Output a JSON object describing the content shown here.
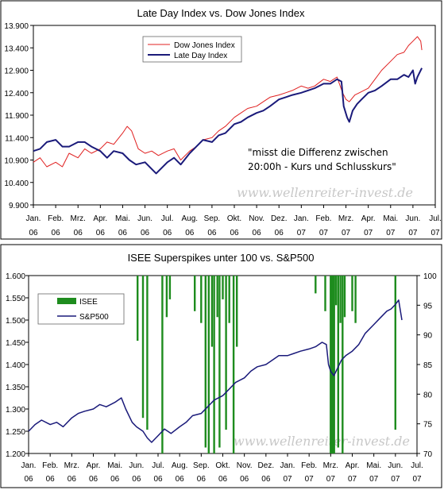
{
  "chart_data": [
    {
      "type": "line",
      "title": "Late Day Index vs. Dow Jones Index",
      "y_ticks": [
        "13.900",
        "13.400",
        "12.900",
        "12.400",
        "11.900",
        "11.400",
        "10.900",
        "10.400",
        "9.900"
      ],
      "ylim": [
        9900,
        13900
      ],
      "x_ticks": [
        {
          "m": "Jan.",
          "y": "06"
        },
        {
          "m": "Feb.",
          "y": "06"
        },
        {
          "m": "Mrz.",
          "y": "06"
        },
        {
          "m": "Apr.",
          "y": "06"
        },
        {
          "m": "Mai.",
          "y": "06"
        },
        {
          "m": "Jun.",
          "y": "06"
        },
        {
          "m": "Jul.",
          "y": "06"
        },
        {
          "m": "Aug.",
          "y": "06"
        },
        {
          "m": "Sep.",
          "y": "06"
        },
        {
          "m": "Okt.",
          "y": "06"
        },
        {
          "m": "Nov.",
          "y": "06"
        },
        {
          "m": "Dez.",
          "y": "06"
        },
        {
          "m": "Jan.",
          "y": "07"
        },
        {
          "m": "Feb.",
          "y": "07"
        },
        {
          "m": "Mrz.",
          "y": "07"
        },
        {
          "m": "Apr.",
          "y": "07"
        },
        {
          "m": "Mai.",
          "y": "07"
        },
        {
          "m": "Jun.",
          "y": "07"
        },
        {
          "m": "Jul.",
          "y": "07"
        }
      ],
      "legend": "top-left",
      "grid": false,
      "annotation": [
        "\"misst die Differenz zwischen",
        "20:00h - Kurs und Schlusskurs\""
      ],
      "watermark": "www.wellenreiter-invest.de",
      "series": [
        {
          "name": "Dow Jones Index",
          "color": "#e02020",
          "points": [
            [
              0,
              10850
            ],
            [
              0.3,
              10950
            ],
            [
              0.6,
              10750
            ],
            [
              1,
              10850
            ],
            [
              1.3,
              10750
            ],
            [
              1.6,
              11050
            ],
            [
              2,
              10950
            ],
            [
              2.3,
              11150
            ],
            [
              2.6,
              11050
            ],
            [
              3,
              11150
            ],
            [
              3.3,
              11300
            ],
            [
              3.6,
              11250
            ],
            [
              4,
              11500
            ],
            [
              4.2,
              11650
            ],
            [
              4.4,
              11550
            ],
            [
              4.7,
              11150
            ],
            [
              5,
              11050
            ],
            [
              5.3,
              11100
            ],
            [
              5.6,
              11000
            ],
            [
              6,
              11100
            ],
            [
              6.3,
              11150
            ],
            [
              6.6,
              10900
            ],
            [
              7,
              11100
            ],
            [
              7.3,
              11200
            ],
            [
              7.6,
              11350
            ],
            [
              8,
              11400
            ],
            [
              8.3,
              11550
            ],
            [
              8.6,
              11650
            ],
            [
              9,
              11850
            ],
            [
              9.3,
              11950
            ],
            [
              9.6,
              12050
            ],
            [
              10,
              12100
            ],
            [
              10.3,
              12200
            ],
            [
              10.6,
              12300
            ],
            [
              11,
              12350
            ],
            [
              11.3,
              12400
            ],
            [
              11.6,
              12450
            ],
            [
              12,
              12550
            ],
            [
              12.3,
              12500
            ],
            [
              12.6,
              12550
            ],
            [
              13,
              12700
            ],
            [
              13.3,
              12650
            ],
            [
              13.6,
              12750
            ],
            [
              13.85,
              12400
            ],
            [
              14,
              12250
            ],
            [
              14.15,
              12200
            ],
            [
              14.4,
              12350
            ],
            [
              14.6,
              12400
            ],
            [
              15,
              12500
            ],
            [
              15.3,
              12700
            ],
            [
              15.6,
              12900
            ],
            [
              16,
              13100
            ],
            [
              16.3,
              13250
            ],
            [
              16.6,
              13300
            ],
            [
              16.8,
              13450
            ],
            [
              17,
              13550
            ],
            [
              17.2,
              13650
            ],
            [
              17.35,
              13550
            ],
            [
              17.4,
              13350
            ]
          ]
        },
        {
          "name": "Late Day Index",
          "color": "#1a1a7a",
          "points": [
            [
              0,
              11100
            ],
            [
              0.3,
              11150
            ],
            [
              0.6,
              11300
            ],
            [
              1,
              11350
            ],
            [
              1.3,
              11200
            ],
            [
              1.6,
              11200
            ],
            [
              2,
              11300
            ],
            [
              2.3,
              11300
            ],
            [
              2.6,
              11200
            ],
            [
              3,
              11100
            ],
            [
              3.3,
              10950
            ],
            [
              3.6,
              11100
            ],
            [
              4,
              11050
            ],
            [
              4.3,
              10900
            ],
            [
              4.6,
              10800
            ],
            [
              5,
              10850
            ],
            [
              5.3,
              10700
            ],
            [
              5.5,
              10600
            ],
            [
              5.7,
              10700
            ],
            [
              6,
              10850
            ],
            [
              6.3,
              10950
            ],
            [
              6.6,
              10800
            ],
            [
              7,
              11050
            ],
            [
              7.3,
              11200
            ],
            [
              7.6,
              11350
            ],
            [
              8,
              11300
            ],
            [
              8.3,
              11450
            ],
            [
              8.6,
              11500
            ],
            [
              9,
              11700
            ],
            [
              9.3,
              11750
            ],
            [
              9.6,
              11850
            ],
            [
              10,
              11950
            ],
            [
              10.3,
              12000
            ],
            [
              10.6,
              12100
            ],
            [
              11,
              12250
            ],
            [
              11.3,
              12300
            ],
            [
              11.6,
              12350
            ],
            [
              12,
              12400
            ],
            [
              12.3,
              12450
            ],
            [
              12.6,
              12500
            ],
            [
              13,
              12600
            ],
            [
              13.3,
              12600
            ],
            [
              13.6,
              12700
            ],
            [
              13.8,
              12650
            ],
            [
              13.9,
              12100
            ],
            [
              14.05,
              11850
            ],
            [
              14.15,
              11750
            ],
            [
              14.3,
              12000
            ],
            [
              14.5,
              12150
            ],
            [
              14.7,
              12250
            ],
            [
              15,
              12400
            ],
            [
              15.3,
              12450
            ],
            [
              15.6,
              12550
            ],
            [
              16,
              12700
            ],
            [
              16.3,
              12700
            ],
            [
              16.6,
              12800
            ],
            [
              16.8,
              12750
            ],
            [
              17,
              12900
            ],
            [
              17.1,
              12600
            ],
            [
              17.2,
              12750
            ],
            [
              17.3,
              12850
            ],
            [
              17.4,
              12950
            ]
          ]
        }
      ]
    },
    {
      "type": "line",
      "title": "ISEE Superspikes unter 100 vs. S&P500",
      "y_ticks_left": [
        "1.600",
        "1.550",
        "1.500",
        "1.450",
        "1.400",
        "1.350",
        "1.300",
        "1.250",
        "1.200"
      ],
      "ylim_left": [
        1200,
        1600
      ],
      "y_ticks_right": [
        "100",
        "95",
        "90",
        "85",
        "80",
        "75",
        "70"
      ],
      "ylim_right": [
        70,
        100
      ],
      "x_ticks": [
        {
          "m": "Jan.",
          "y": "06"
        },
        {
          "m": "Feb.",
          "y": "06"
        },
        {
          "m": "Mrz.",
          "y": "06"
        },
        {
          "m": "Apr.",
          "y": "06"
        },
        {
          "m": "Mai.",
          "y": "06"
        },
        {
          "m": "Jun.",
          "y": "06"
        },
        {
          "m": "Jul.",
          "y": "06"
        },
        {
          "m": "Aug.",
          "y": "06"
        },
        {
          "m": "Sep.",
          "y": "06"
        },
        {
          "m": "Okt.",
          "y": "06"
        },
        {
          "m": "Nov.",
          "y": "06"
        },
        {
          "m": "Dez.",
          "y": "06"
        },
        {
          "m": "Jan.",
          "y": "07"
        },
        {
          "m": "Feb.",
          "y": "07"
        },
        {
          "m": "Mrz.",
          "y": "07"
        },
        {
          "m": "Apr.",
          "y": "07"
        },
        {
          "m": "Mai.",
          "y": "07"
        },
        {
          "m": "Jun.",
          "y": "07"
        },
        {
          "m": "Jul.",
          "y": "07"
        }
      ],
      "legend": "top-left",
      "grid": false,
      "watermark": "www.wellenreiter-invest.de",
      "isee": {
        "name": "ISEE",
        "color": "#1e8c1e",
        "bars": [
          [
            5.05,
            89
          ],
          [
            5.3,
            76
          ],
          [
            5.5,
            74
          ],
          [
            6.2,
            70
          ],
          [
            6.4,
            93
          ],
          [
            6.55,
            96
          ],
          [
            7.7,
            94
          ],
          [
            8.0,
            92
          ],
          [
            8.2,
            71
          ],
          [
            8.35,
            70
          ],
          [
            8.5,
            88
          ],
          [
            8.6,
            70
          ],
          [
            8.75,
            93
          ],
          [
            8.85,
            71
          ],
          [
            9.0,
            96
          ],
          [
            9.15,
            74
          ],
          [
            9.3,
            92
          ],
          [
            9.5,
            70
          ],
          [
            9.65,
            88
          ],
          [
            13.3,
            97
          ],
          [
            13.75,
            94
          ],
          [
            14.0,
            70
          ],
          [
            14.08,
            70
          ],
          [
            14.16,
            70
          ],
          [
            14.25,
            95
          ],
          [
            14.35,
            71
          ],
          [
            14.45,
            92
          ],
          [
            14.55,
            70
          ],
          [
            14.65,
            93
          ],
          [
            15.0,
            94
          ],
          [
            15.15,
            92
          ],
          [
            17.0,
            74
          ]
        ]
      },
      "series": [
        {
          "name": "S&P500",
          "color": "#1a1a7a",
          "points": [
            [
              0,
              1250
            ],
            [
              0.3,
              1265
            ],
            [
              0.6,
              1275
            ],
            [
              1,
              1265
            ],
            [
              1.3,
              1270
            ],
            [
              1.6,
              1260
            ],
            [
              2,
              1280
            ],
            [
              2.3,
              1290
            ],
            [
              2.6,
              1295
            ],
            [
              3,
              1300
            ],
            [
              3.3,
              1310
            ],
            [
              3.6,
              1305
            ],
            [
              4,
              1315
            ],
            [
              4.3,
              1325
            ],
            [
              4.5,
              1300
            ],
            [
              4.8,
              1270
            ],
            [
              5,
              1260
            ],
            [
              5.3,
              1250
            ],
            [
              5.5,
              1235
            ],
            [
              5.7,
              1225
            ],
            [
              6,
              1240
            ],
            [
              6.3,
              1255
            ],
            [
              6.6,
              1245
            ],
            [
              7,
              1260
            ],
            [
              7.3,
              1270
            ],
            [
              7.6,
              1285
            ],
            [
              8,
              1290
            ],
            [
              8.3,
              1305
            ],
            [
              8.6,
              1320
            ],
            [
              9,
              1330
            ],
            [
              9.3,
              1345
            ],
            [
              9.6,
              1360
            ],
            [
              10,
              1370
            ],
            [
              10.3,
              1385
            ],
            [
              10.6,
              1395
            ],
            [
              11,
              1400
            ],
            [
              11.3,
              1410
            ],
            [
              11.6,
              1420
            ],
            [
              12,
              1420
            ],
            [
              12.3,
              1425
            ],
            [
              12.6,
              1430
            ],
            [
              13,
              1435
            ],
            [
              13.3,
              1440
            ],
            [
              13.6,
              1450
            ],
            [
              13.8,
              1445
            ],
            [
              13.9,
              1400
            ],
            [
              14.0,
              1385
            ],
            [
              14.15,
              1375
            ],
            [
              14.3,
              1390
            ],
            [
              14.5,
              1410
            ],
            [
              14.7,
              1420
            ],
            [
              15,
              1430
            ],
            [
              15.3,
              1445
            ],
            [
              15.6,
              1470
            ],
            [
              16,
              1490
            ],
            [
              16.3,
              1505
            ],
            [
              16.6,
              1520
            ],
            [
              16.8,
              1525
            ],
            [
              17,
              1535
            ],
            [
              17.15,
              1545
            ],
            [
              17.3,
              1500
            ]
          ]
        }
      ]
    }
  ]
}
